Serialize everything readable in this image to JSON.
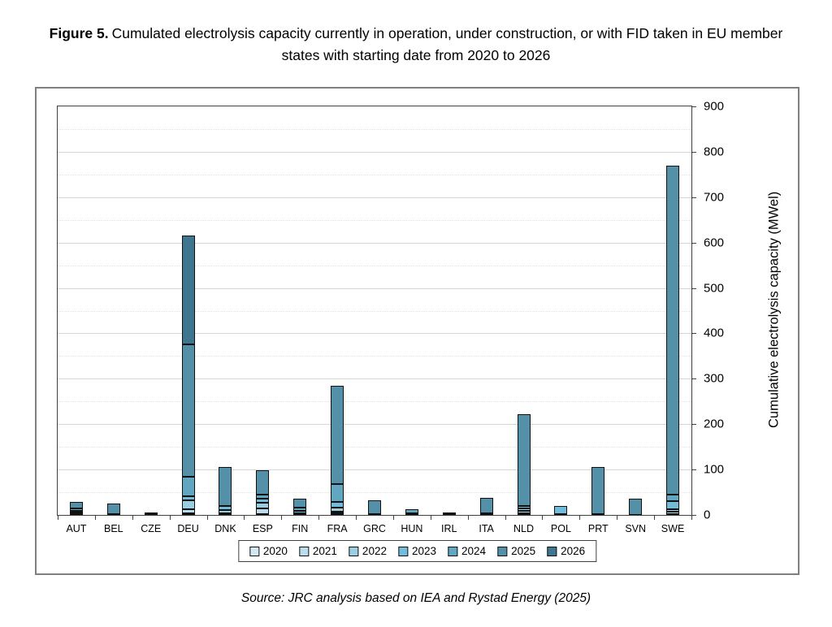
{
  "figure": {
    "title_prefix": "Figure 5.",
    "title_text": "Cumulated electrolysis capacity currently in operation, under construction, or with FID taken in EU member states with starting date from 2020 to 2026",
    "source": "Source: JRC analysis based on IEA and Rystad Energy (2025)"
  },
  "chart_data": {
    "type": "bar",
    "stacked": true,
    "xlabel": "",
    "ylabel": "Cumulative electrolysis capacity (MWel)",
    "ylim": [
      0,
      900
    ],
    "yticks": [
      0,
      100,
      200,
      300,
      400,
      500,
      600,
      700,
      800,
      900
    ],
    "minor_tick_interval": 50,
    "grid": true,
    "legend_position": "bottom",
    "categories": [
      "AUT",
      "BEL",
      "CZE",
      "DEU",
      "DNK",
      "ESP",
      "FIN",
      "FRA",
      "GRC",
      "HUN",
      "IRL",
      "ITA",
      "NLD",
      "POL",
      "PRT",
      "SVN",
      "SWE"
    ],
    "series": [
      {
        "name": "2020",
        "color": "#D4E7F1",
        "values": [
          2,
          0,
          0,
          4,
          0,
          2,
          1,
          3,
          0,
          0,
          0,
          1,
          4,
          0,
          0,
          0,
          2
        ]
      },
      {
        "name": "2021",
        "color": "#BCDCEB",
        "values": [
          2,
          1,
          0,
          8,
          3,
          12,
          2,
          5,
          2,
          0,
          0,
          0,
          5,
          2,
          0,
          0,
          5
        ]
      },
      {
        "name": "2022",
        "color": "#9CCEE2",
        "values": [
          2,
          1,
          0,
          20,
          7,
          12,
          0,
          9,
          0,
          0,
          0,
          2,
          5,
          0,
          2,
          0,
          6
        ]
      },
      {
        "name": "2023",
        "color": "#72BCD9",
        "values": [
          3,
          0,
          1,
          9,
          10,
          10,
          6,
          12,
          0,
          3,
          1,
          0,
          5,
          18,
          0,
          0,
          18
        ]
      },
      {
        "name": "2024",
        "color": "#62A7C2",
        "values": [
          6,
          0,
          0,
          43,
          0,
          8,
          8,
          39,
          0,
          9,
          0,
          0,
          0,
          0,
          0,
          0,
          14
        ]
      },
      {
        "name": "2025",
        "color": "#5590A9",
        "values": [
          14,
          23,
          2,
          291,
          85,
          54,
          19,
          217,
          30,
          0,
          2,
          35,
          203,
          0,
          103,
          35,
          725
        ]
      },
      {
        "name": "2026",
        "color": "#3E7690",
        "values": [
          0,
          0,
          0,
          240,
          0,
          0,
          0,
          0,
          0,
          0,
          0,
          0,
          0,
          0,
          0,
          0,
          0
        ]
      }
    ],
    "totals": {
      "AUT": 29,
      "BEL": 25,
      "CZE": 3,
      "DEU": 615,
      "DNK": 105,
      "ESP": 98,
      "FIN": 36,
      "FRA": 285,
      "GRC": 32,
      "HUN": 12,
      "IRL": 3,
      "ITA": 38,
      "NLD": 222,
      "POL": 20,
      "PRT": 105,
      "SVN": 35,
      "SWE": 770
    }
  }
}
